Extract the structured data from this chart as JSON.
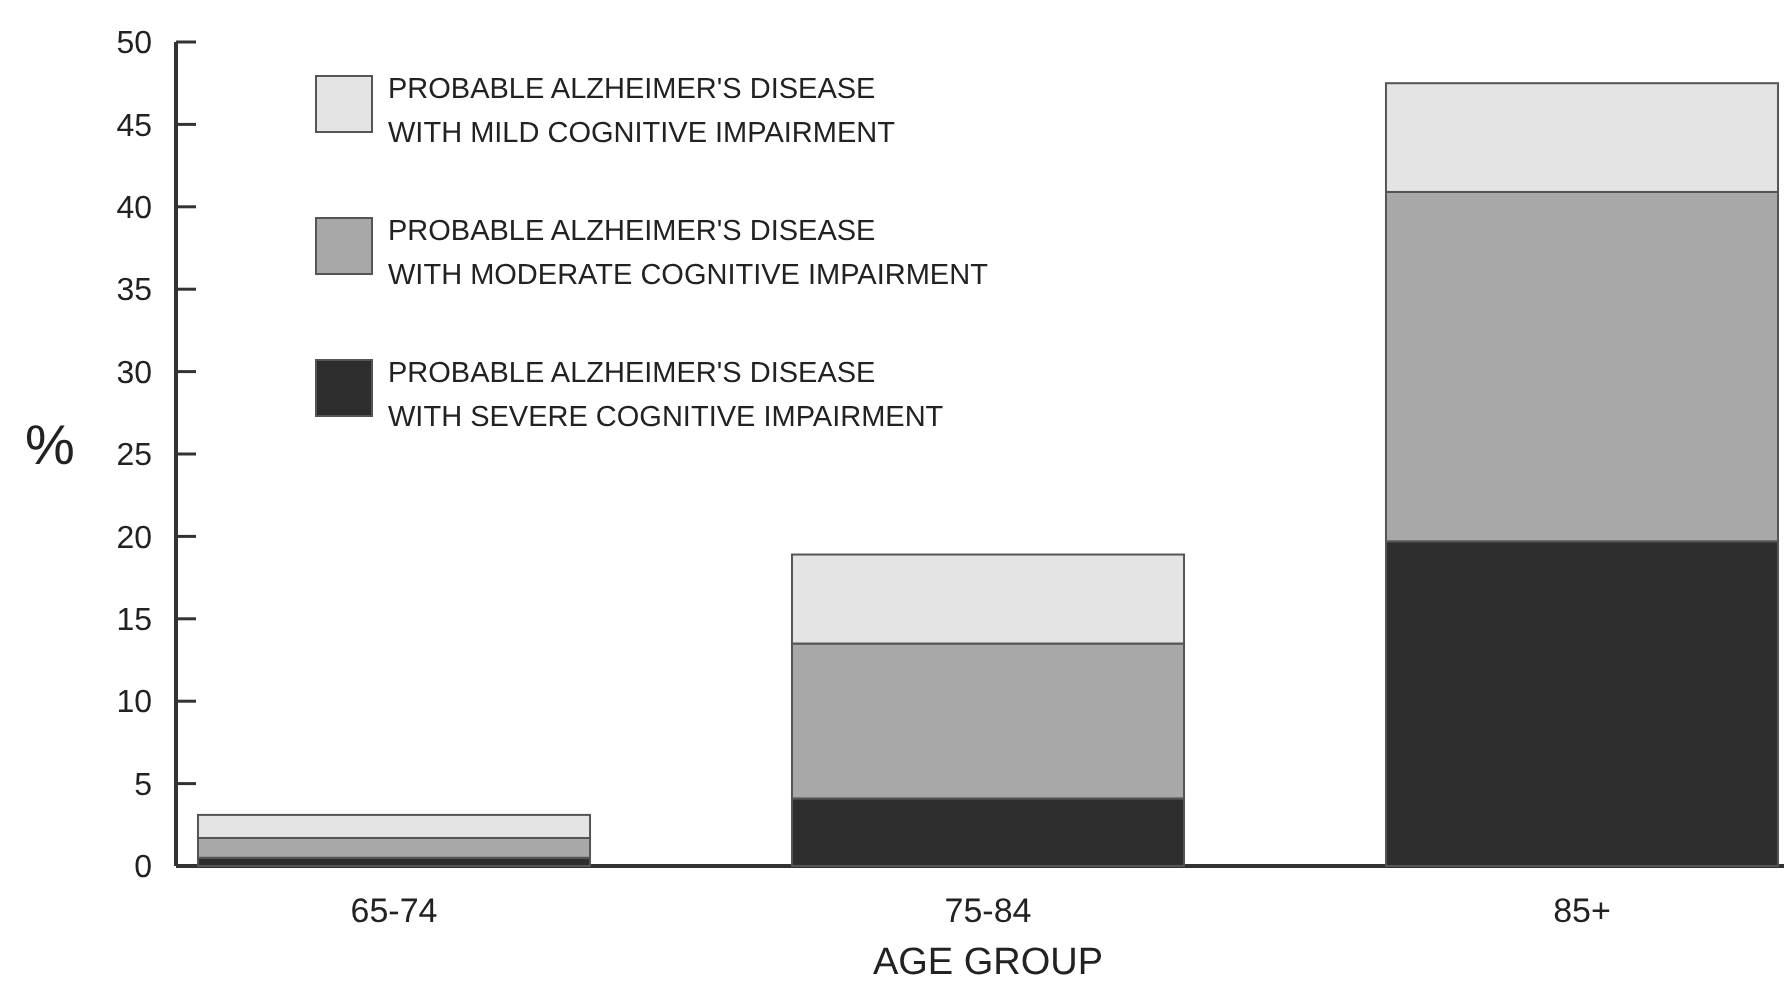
{
  "chart_data": {
    "type": "bar",
    "stacked": true,
    "xlabel": "AGE GROUP",
    "ylabel": "%",
    "categories": [
      "65-74",
      "75-84",
      "85+"
    ],
    "series": [
      {
        "name": "PROBABLE ALZHEIMER'S DISEASE WITH SEVERE COGNITIVE IMPAIRMENT",
        "color": "#2e2e2e",
        "values": [
          0.5,
          4.1,
          19.7
        ]
      },
      {
        "name": "PROBABLE ALZHEIMER'S DISEASE WITH MODERATE COGNITIVE IMPAIRMENT",
        "color": "#a8a8a8",
        "values": [
          1.2,
          9.4,
          21.2
        ]
      },
      {
        "name": "PROBABLE ALZHEIMER'S DISEASE WITH MILD COGNITIVE IMPAIRMENT",
        "color": "#e4e4e4",
        "values": [
          1.4,
          5.4,
          6.6
        ]
      }
    ],
    "ylim": [
      0,
      50
    ],
    "yticks": [
      0,
      5,
      10,
      15,
      20,
      25,
      30,
      35,
      40,
      45,
      50
    ],
    "grid": false,
    "legend": "top left"
  }
}
